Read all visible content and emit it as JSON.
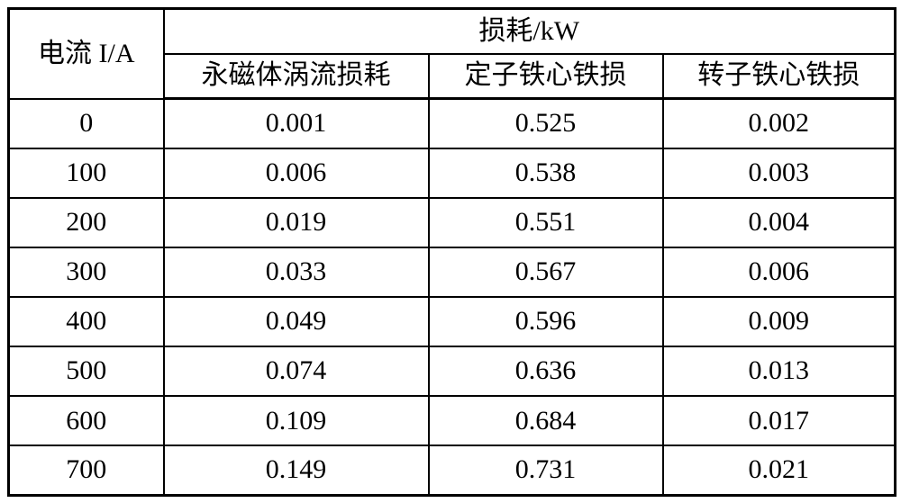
{
  "colors": {
    "border": "#000000",
    "text": "#000000",
    "background": "#ffffff"
  },
  "table": {
    "current_header": "电流 I/A",
    "loss_group_header": "损耗/kW",
    "sub_headers": {
      "eddy": "永磁体涡流损耗",
      "stator": "定子铁心铁损",
      "rotor": "转子铁心铁损"
    }
  },
  "chart_data": {
    "type": "table",
    "title": "损耗/kW",
    "columns": [
      "电流 I/A",
      "永磁体涡流损耗",
      "定子铁心铁损",
      "转子铁心铁损"
    ],
    "column_group": {
      "label": "损耗/kW",
      "spans_columns": [
        "永磁体涡流损耗",
        "定子铁心铁损",
        "转子铁心铁损"
      ]
    },
    "rows": [
      [
        "0",
        "0.001",
        "0.525",
        "0.002"
      ],
      [
        "100",
        "0.006",
        "0.538",
        "0.003"
      ],
      [
        "200",
        "0.019",
        "0.551",
        "0.004"
      ],
      [
        "300",
        "0.033",
        "0.567",
        "0.006"
      ],
      [
        "400",
        "0.049",
        "0.596",
        "0.009"
      ],
      [
        "500",
        "0.074",
        "0.636",
        "0.013"
      ],
      [
        "600",
        "0.109",
        "0.684",
        "0.017"
      ],
      [
        "700",
        "0.149",
        "0.731",
        "0.021"
      ]
    ]
  }
}
